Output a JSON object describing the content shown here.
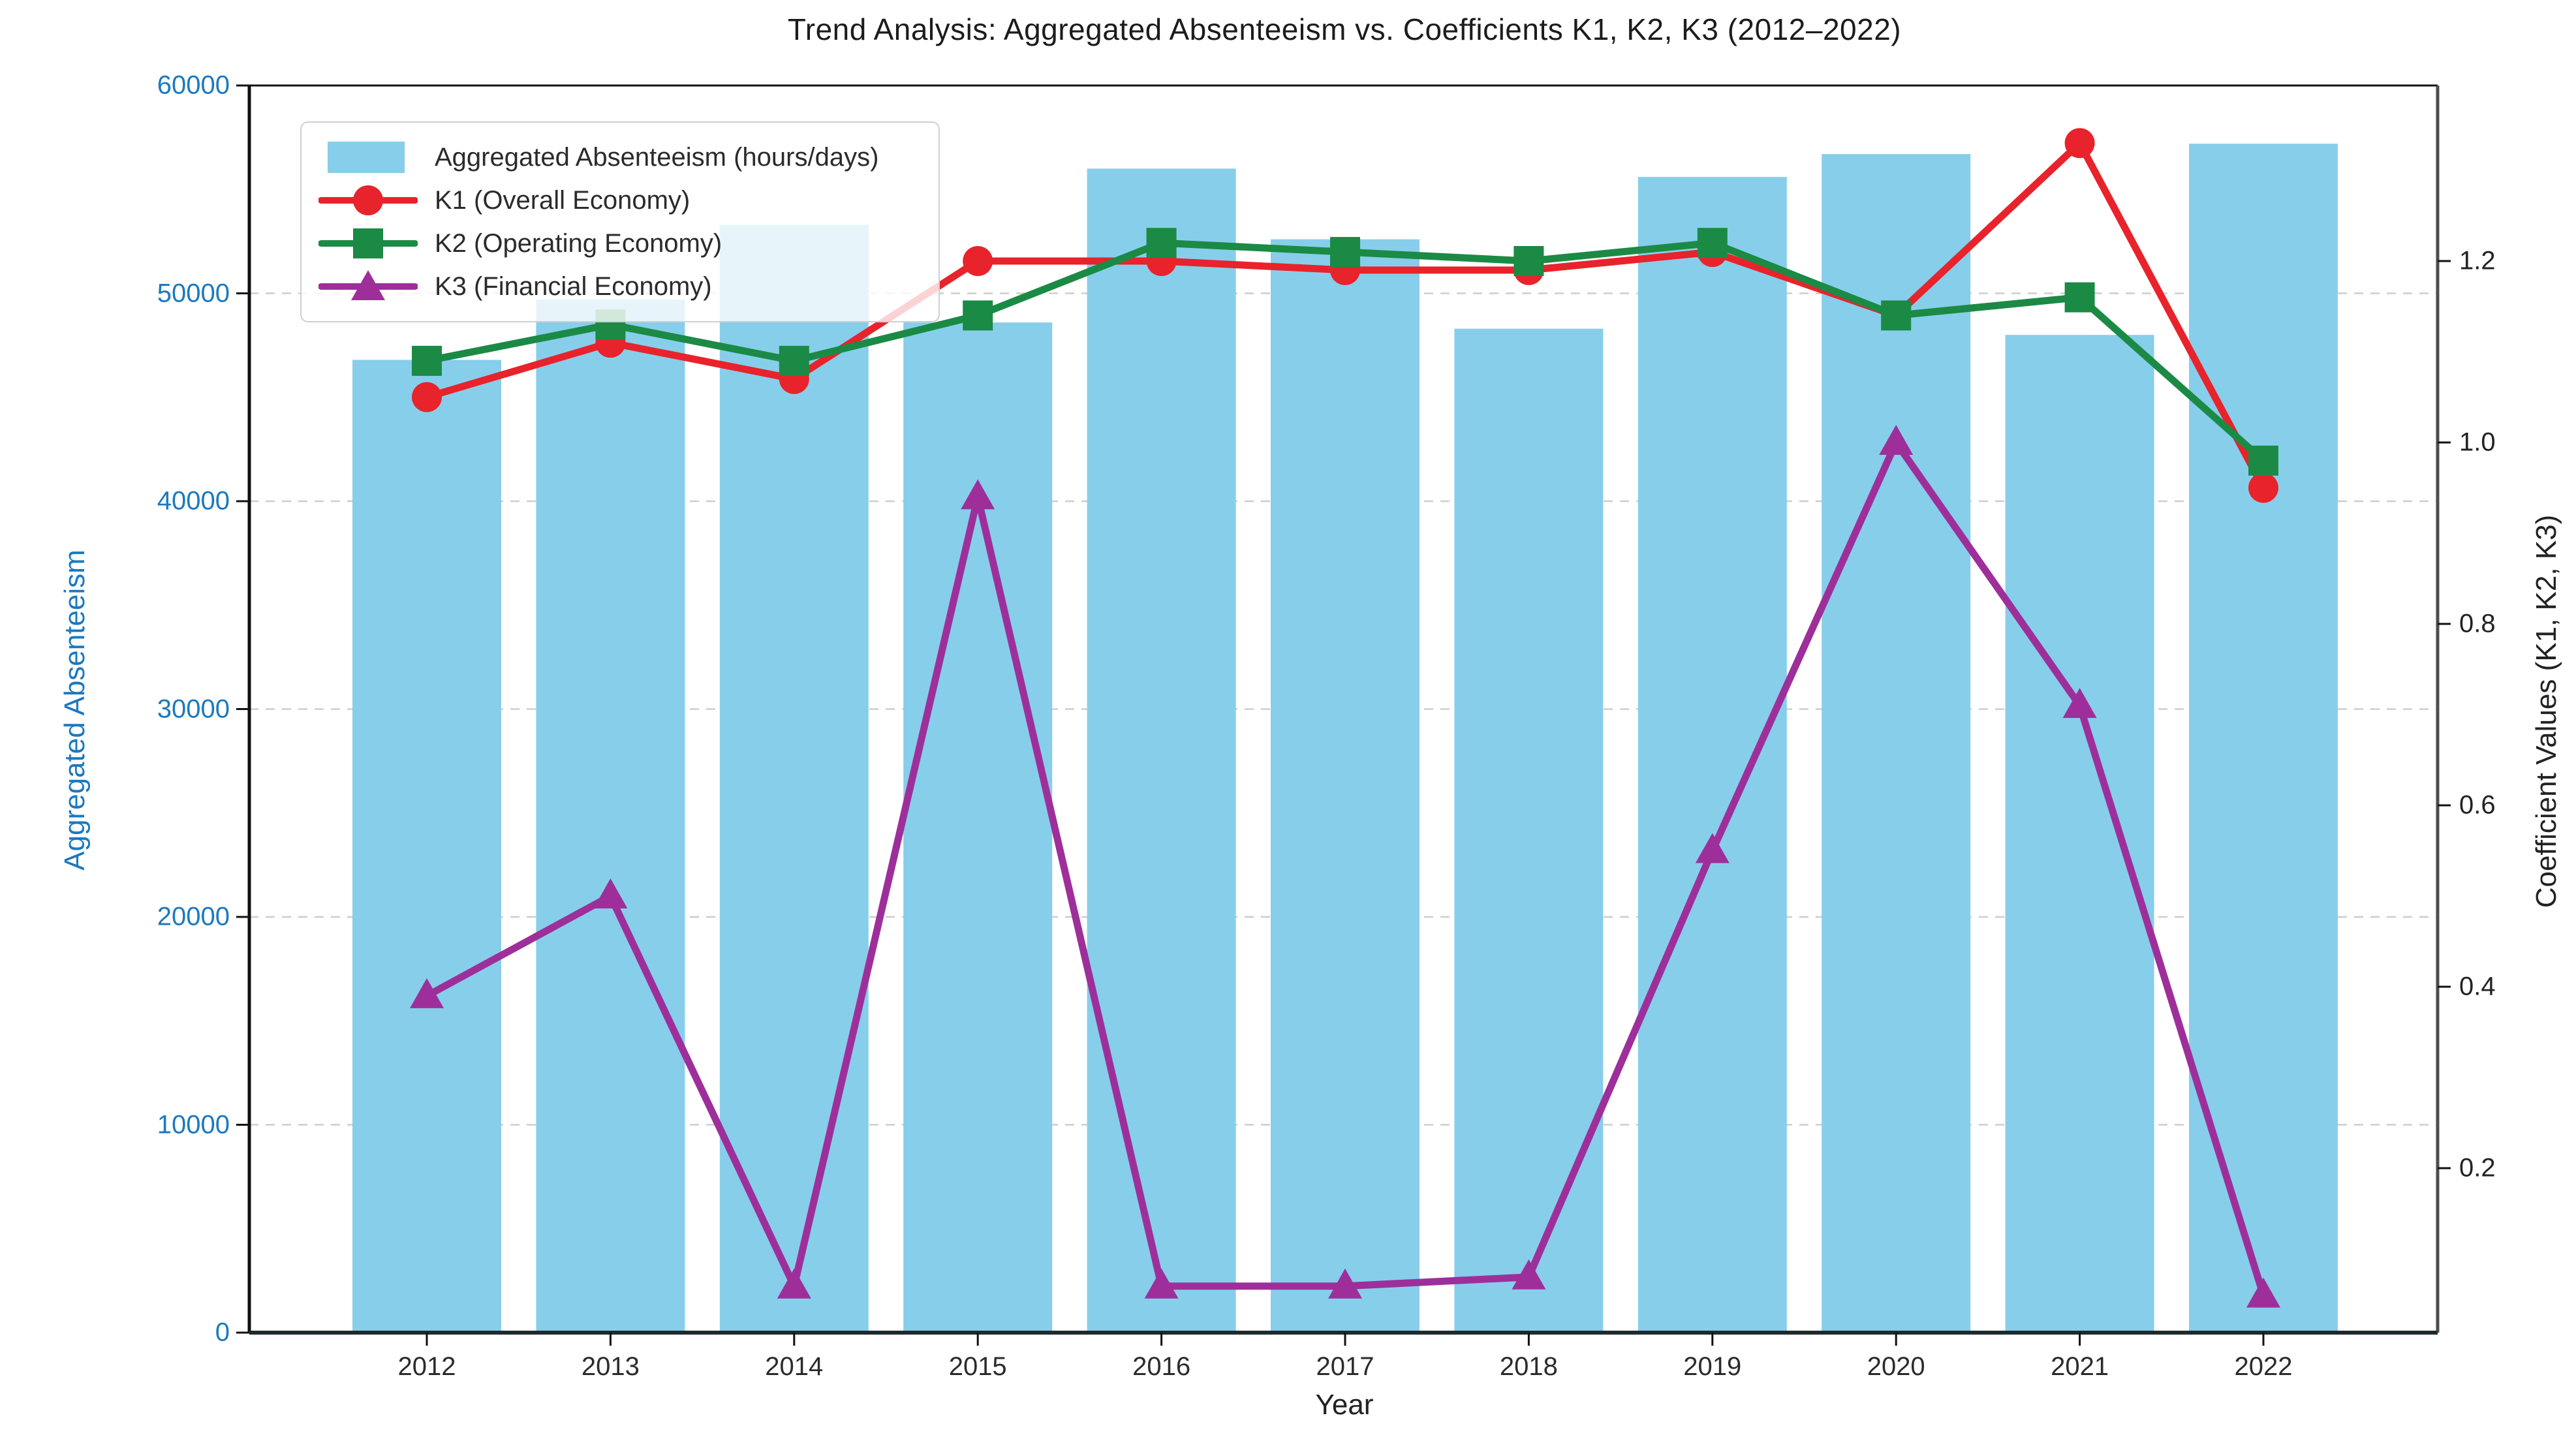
{
  "title": "Trend Analysis: Aggregated Absenteeism vs. Coefficients K1, K2, K3 (2012–2022)",
  "axes": {
    "x": {
      "label": "Year",
      "ticks": [
        "2012",
        "2013",
        "2014",
        "2015",
        "2016",
        "2017",
        "2018",
        "2019",
        "2020",
        "2021",
        "2022"
      ]
    },
    "left": {
      "label": "Aggregated Absenteeism",
      "ticks": [
        "0",
        "10000",
        "20000",
        "30000",
        "40000",
        "50000",
        "60000"
      ],
      "tick_color": "#1b79c0"
    },
    "right": {
      "label": "Coefficient Values (K1, K2, K3)",
      "ticks": [
        "0.2",
        "0.4",
        "0.6",
        "0.8",
        "1.0",
        "1.2"
      ],
      "tick_color": "#222222"
    }
  },
  "legend": {
    "items": [
      {
        "label": "Aggregated Absenteeism (hours/days)",
        "swatch": "bar-patch",
        "color": "#87CEEB"
      },
      {
        "label": "K1 (Overall Economy)",
        "swatch": "line-circle",
        "color": "#e8232b"
      },
      {
        "label": "K2 (Operating Economy)",
        "swatch": "line-square",
        "color": "#1b8a45"
      },
      {
        "label": "K3 (Financial Economy)",
        "swatch": "line-triangle",
        "color": "#9e2f9a"
      }
    ]
  },
  "chart_data": {
    "type": "bar+line combo, dual y-axes",
    "categories": [
      2012,
      2013,
      2014,
      2015,
      2016,
      2017,
      2018,
      2019,
      2020,
      2021,
      2022
    ],
    "series": [
      {
        "name": "Aggregated Absenteeism (hours/days)",
        "type": "bar",
        "axis": "left",
        "color": "#87CEEB",
        "values": [
          46800,
          49700,
          53300,
          48600,
          56000,
          52600,
          48300,
          55600,
          56700,
          48000,
          57200
        ]
      },
      {
        "name": "K1 (Overall Economy)",
        "type": "line",
        "marker": "circle",
        "axis": "right",
        "color": "#e8232b",
        "values": [
          1.05,
          1.11,
          1.07,
          1.2,
          1.2,
          1.19,
          1.19,
          1.21,
          1.14,
          1.33,
          0.95
        ]
      },
      {
        "name": "K2 (Operating Economy)",
        "type": "line",
        "marker": "square",
        "axis": "right",
        "color": "#1b8a45",
        "values": [
          1.09,
          1.13,
          1.09,
          1.14,
          1.22,
          1.21,
          1.2,
          1.22,
          1.14,
          1.16,
          0.98
        ]
      },
      {
        "name": "K3 (Financial Economy)",
        "type": "line",
        "marker": "triangle",
        "axis": "right",
        "color": "#9e2f9a",
        "values": [
          0.39,
          0.5,
          0.07,
          0.94,
          0.07,
          0.07,
          0.08,
          0.55,
          1.0,
          0.71,
          0.06
        ]
      }
    ],
    "title": "Trend Analysis: Aggregated Absenteeism vs. Coefficients K1, K2, K3 (2012–2022)",
    "xlabel": "Year",
    "ylabel_left": "Aggregated Absenteeism",
    "ylabel_right": "Coefficient Values (K1, K2, K3)",
    "ylim_left": [
      0,
      60000
    ],
    "ylim_right_approx": [
      0.03,
      1.39
    ],
    "grid": "horizontal dashed, light gray",
    "legend_position": "upper left"
  },
  "colors": {
    "bar": "#87CEEB",
    "k1": "#e8232b",
    "k2": "#1b8a45",
    "k3": "#9e2f9a",
    "left_axis_text": "#1b79c0",
    "grid": "#cdcdcd",
    "background": "#ffffff"
  }
}
